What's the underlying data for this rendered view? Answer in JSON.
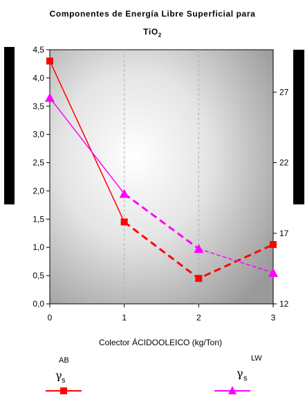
{
  "chart_data": {
    "type": "line",
    "title_line1": "Componentes de Energía Libre Superficial para",
    "title_line2": "TiO",
    "title_sub": "2",
    "xlabel": "Colector ÁCIDOOLEICO (kg/Ton)",
    "x": [
      0,
      1,
      2,
      3
    ],
    "xlim": [
      0,
      3
    ],
    "ylim_left": [
      0,
      4.5
    ],
    "yticks_left": [
      "0,0",
      "0,5",
      "1,0",
      "1,5",
      "2,0",
      "2,5",
      "3,0",
      "3,5",
      "4,0",
      "4,5"
    ],
    "ylim_right": [
      12,
      30
    ],
    "yticks_right": [
      "12",
      "17",
      "22",
      "27"
    ],
    "series": [
      {
        "name": "γs AB",
        "legend_symbol": "γ",
        "legend_sub": "s",
        "legend_sup": "AB",
        "axis": "left",
        "solid_values": [
          4.3,
          1.45
        ],
        "dashed_values": [
          1.45,
          0.45,
          1.05
        ],
        "dashed_x": [
          1,
          2,
          3
        ],
        "marker": "square",
        "color": "#ff0000"
      },
      {
        "name": "γs LW",
        "legend_symbol": "γ",
        "legend_sub": "s",
        "legend_sup": "LW",
        "axis": "right",
        "values": [
          26.6,
          19.8,
          15.9,
          14.2
        ],
        "marker": "triangle",
        "color": "#ff00ff"
      }
    ],
    "grid": "vertical-dashed"
  }
}
